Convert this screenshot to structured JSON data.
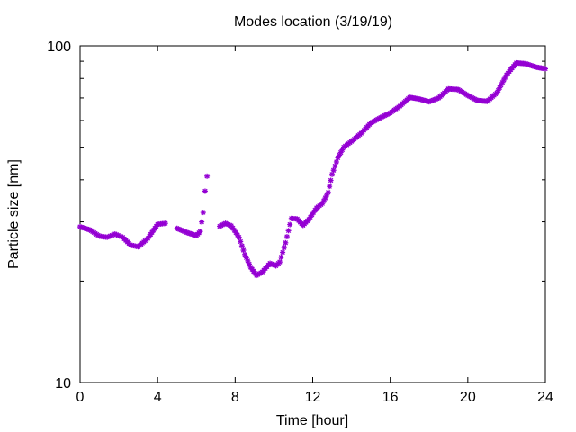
{
  "chart_data": {
    "type": "scatter",
    "title": "Modes location (3/19/19)",
    "xlabel": "Time [hour]",
    "ylabel": "Particle size [nm]",
    "xlim": [
      0,
      24
    ],
    "ylim": [
      10,
      100
    ],
    "yscale": "log",
    "x_ticks": [
      0,
      4,
      8,
      12,
      16,
      20,
      24
    ],
    "x_tick_labels": [
      "0",
      "4",
      "8",
      "12",
      "16",
      "20",
      "24"
    ],
    "y_major_ticks": [
      10,
      100
    ],
    "y_tick_labels": [
      "10",
      "100"
    ],
    "y_minor_ticks": [
      20,
      30,
      40,
      50,
      60,
      70,
      80,
      90
    ],
    "grid": false,
    "legend": "none",
    "marker": "asterisk",
    "color": "#9400d3",
    "series": [
      {
        "points": [
          [
            0.0,
            29.0
          ],
          [
            0.5,
            28.4
          ],
          [
            1.0,
            27.2
          ],
          [
            1.4,
            27.0
          ],
          [
            1.8,
            27.6
          ],
          [
            2.2,
            27.0
          ],
          [
            2.6,
            25.6
          ],
          [
            3.0,
            25.3
          ],
          [
            3.5,
            26.8
          ],
          [
            4.0,
            29.5
          ],
          [
            4.4,
            29.7
          ],
          [
            5.0,
            28.7
          ],
          [
            5.5,
            27.9
          ],
          [
            6.0,
            27.3
          ],
          [
            6.2,
            28.1
          ],
          [
            6.35,
            32.0
          ],
          [
            6.45,
            37.0
          ],
          [
            6.55,
            41.0
          ],
          [
            7.2,
            29.1
          ],
          [
            7.5,
            29.7
          ],
          [
            7.8,
            29.2
          ],
          [
            8.2,
            27.0
          ],
          [
            8.5,
            24.0
          ],
          [
            8.8,
            22.0
          ],
          [
            9.1,
            20.8
          ],
          [
            9.4,
            21.3
          ],
          [
            9.8,
            22.6
          ],
          [
            10.1,
            22.2
          ],
          [
            10.3,
            22.8
          ],
          [
            10.6,
            26.0
          ],
          [
            10.9,
            30.7
          ],
          [
            11.2,
            30.6
          ],
          [
            11.5,
            29.3
          ],
          [
            11.8,
            30.5
          ],
          [
            12.2,
            33.0
          ],
          [
            12.5,
            34.0
          ],
          [
            12.8,
            36.7
          ],
          [
            13.0,
            41.5
          ],
          [
            13.3,
            46.5
          ],
          [
            13.6,
            50.0
          ],
          [
            14.0,
            52.0
          ],
          [
            14.5,
            55.0
          ],
          [
            15.0,
            59.0
          ],
          [
            15.5,
            61.2
          ],
          [
            16.0,
            63.2
          ],
          [
            16.5,
            66.2
          ],
          [
            17.0,
            70.3
          ],
          [
            17.5,
            69.5
          ],
          [
            18.0,
            68.2
          ],
          [
            18.5,
            70.0
          ],
          [
            19.0,
            74.5
          ],
          [
            19.5,
            74.2
          ],
          [
            20.0,
            71.2
          ],
          [
            20.5,
            68.8
          ],
          [
            21.0,
            68.4
          ],
          [
            21.5,
            72.5
          ],
          [
            22.0,
            82.0
          ],
          [
            22.5,
            89.0
          ],
          [
            23.0,
            88.5
          ],
          [
            23.5,
            86.5
          ],
          [
            24.0,
            85.5
          ]
        ]
      }
    ]
  }
}
